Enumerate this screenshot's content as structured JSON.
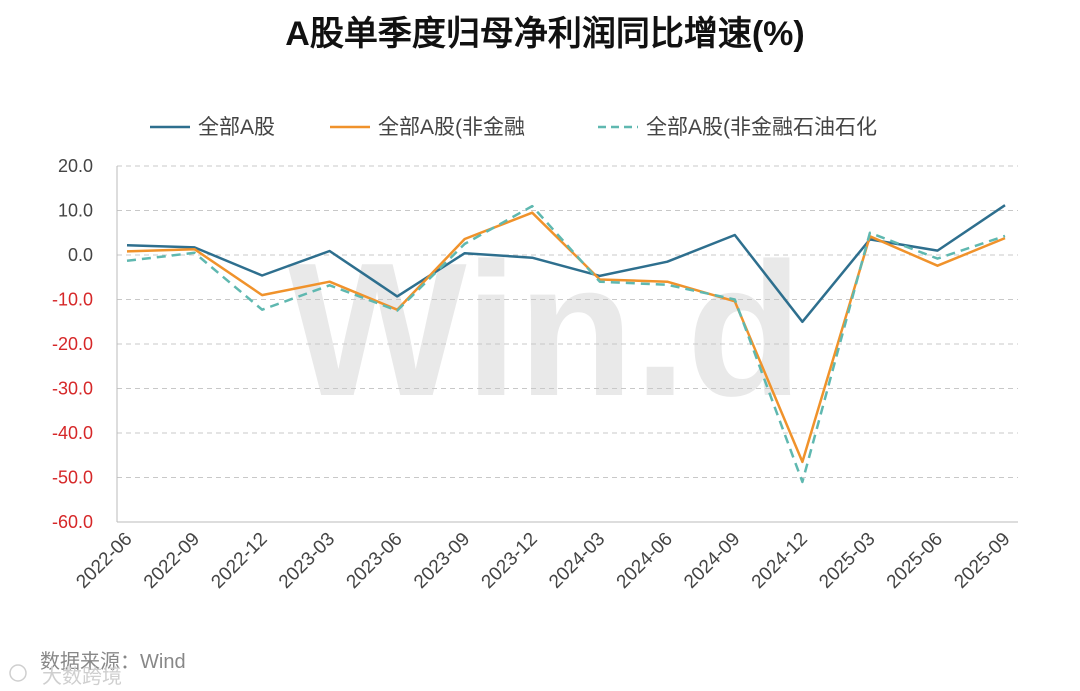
{
  "chart_data": {
    "type": "line",
    "title": "A股单季度归母净利润同比增速(%)",
    "categories": [
      "2022-06",
      "2022-09",
      "2022-12",
      "2023-03",
      "2023-06",
      "2023-09",
      "2023-12",
      "2024-03",
      "2024-06",
      "2024-09",
      "2024-12",
      "2025-03",
      "2025-06",
      "2025-09"
    ],
    "series": [
      {
        "name": "全部A股",
        "color": "#2e6f8e",
        "dash": "solid",
        "values": [
          2.2,
          1.7,
          -4.6,
          0.9,
          -9.3,
          0.4,
          -0.6,
          -4.7,
          -1.5,
          4.5,
          -15.0,
          3.5,
          1.0,
          11.2
        ]
      },
      {
        "name": "全部A股(非金融",
        "color": "#f0922b",
        "dash": "solid",
        "values": [
          0.8,
          1.3,
          -9.0,
          -6.0,
          -12.3,
          3.6,
          9.5,
          -5.5,
          -6.0,
          -10.4,
          -46.5,
          4.2,
          -2.4,
          3.8
        ]
      },
      {
        "name": "全部A股(非金融石油石化",
        "color": "#5fb8b0",
        "dash": "dashed",
        "values": [
          -1.3,
          0.5,
          -12.3,
          -6.8,
          -12.5,
          2.5,
          11.0,
          -6.0,
          -6.7,
          -10.0,
          -51.0,
          5.0,
          -0.8,
          4.3
        ]
      }
    ],
    "y_ticks": [
      "20.0",
      "10.0",
      "0.0",
      "-10.0",
      "-20.0",
      "-30.0",
      "-40.0",
      "-50.0",
      "-60.0"
    ],
    "ylim": [
      -60,
      20
    ],
    "grid": true,
    "legend_position": "top",
    "negative_tick_color": "#d62728",
    "positive_tick_color": "#444444"
  },
  "source": "数据来源：Wind",
  "watermark": "Win.d",
  "logo_text": "大数跨境"
}
